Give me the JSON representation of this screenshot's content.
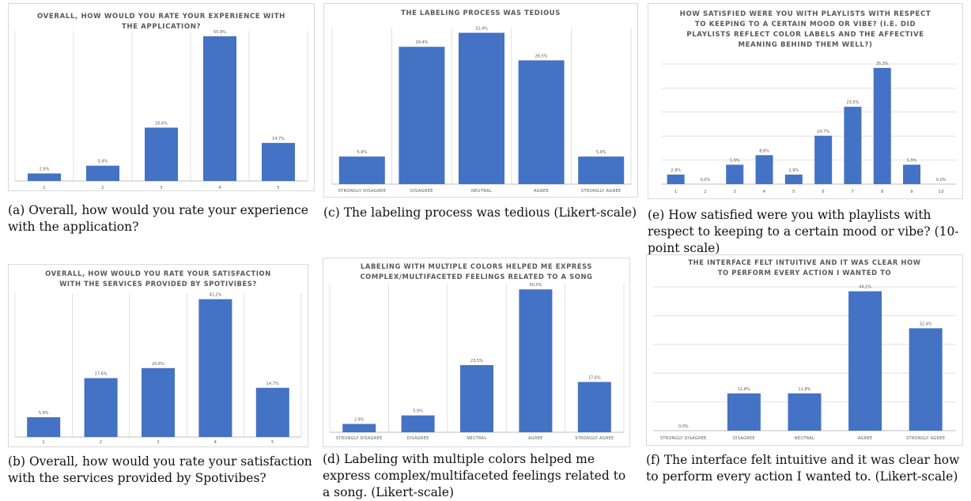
{
  "colors": {
    "bar": "#4472C4",
    "grid": "#d9d9d9",
    "text": "#595959",
    "border": "#d9d9d9"
  },
  "captions": {
    "a": "(a) Overall, how would you rate your experience with the application?",
    "b": "(b) Overall, how would you rate your satisfaction with the services provided by Spotivibes?",
    "c": "(c) The labeling process was tedious (Likert-scale)",
    "d": "(d) Labeling with multiple colors helped me express complex/multifaceted feelings related to a song. (Likert-scale)",
    "e": "(e) How satisfied were you with playlists with respect to keeping to a certain mood or vibe? (10-point scale)",
    "f": "(f) The interface felt intuitive and it was clear how to perform every action I wanted to. (Likert-scale)"
  },
  "chart_data": [
    {
      "id": "a",
      "type": "bar",
      "title": [
        "OVERALL, HOW WOULD YOU RATE YOUR EXPERIENCE WITH",
        "THE APPLICATION?"
      ],
      "categories": [
        "1",
        "2",
        "3",
        "4",
        "5"
      ],
      "values": [
        2.9,
        5.9,
        20.6,
        55.9,
        14.7
      ],
      "labels": [
        "2,9%",
        "5,9%",
        "20,6%",
        "55,9%",
        "14,7%"
      ],
      "ylim": [
        0,
        58
      ],
      "grid": "vertical"
    },
    {
      "id": "b",
      "type": "bar",
      "title": [
        "OVERALL, HOW WOULD YOU RATE YOUR SATISFACTION",
        "WITH THE SERVICES PROVIDED BY SPOTIVIBES?"
      ],
      "categories": [
        "1",
        "2",
        "3",
        "4",
        "5"
      ],
      "values": [
        5.9,
        17.6,
        20.6,
        41.2,
        14.7
      ],
      "labels": [
        "5,9%",
        "17,6%",
        "20,6%",
        "41,2%",
        "14,7%"
      ],
      "ylim": [
        0,
        43
      ],
      "grid": "vertical"
    },
    {
      "id": "c",
      "type": "bar",
      "title": [
        "THE LABELING PROCESS WAS TEDIOUS"
      ],
      "categories": [
        "STRONGLY DISAGREE",
        "DISAGREE",
        "NEUTRAL",
        "AGREE",
        "STRONGLY AGREE"
      ],
      "values": [
        5.9,
        29.4,
        32.4,
        26.5,
        5.9
      ],
      "labels": [
        "5,9%",
        "29,4%",
        "32,4%",
        "26,5%",
        "5,9%"
      ],
      "ylim": [
        0,
        33.5
      ],
      "grid": "vertical"
    },
    {
      "id": "d",
      "type": "bar",
      "title": [
        "LABELING WITH MULTIPLE COLORS HELPED ME EXPRESS",
        "COMPLEX/MULTIFACETED FEELINGS RELATED TO A SONG"
      ],
      "categories": [
        "STRONGLY DISAGREE",
        "DISAGREE",
        "NEUTRAL",
        "AGREE",
        "STRONGLY AGREE"
      ],
      "values": [
        2.9,
        5.9,
        23.5,
        50.0,
        17.6
      ],
      "labels": [
        "2,9%",
        "5,9%",
        "23,5%",
        "50,0%",
        "17,6%"
      ],
      "ylim": [
        0,
        52
      ],
      "grid": "vertical"
    },
    {
      "id": "e",
      "type": "bar",
      "title": [
        "HOW SATISFIED WERE YOU WITH PLAYLISTS WITH RESPECT",
        "TO KEEPING TO A CERTAIN MOOD OR VIBE? (I.E. DID",
        "PLAYLISTS REFLECT COLOR LABELS AND THE AFFECTIVE",
        "MEANING BEHIND THEM WELL?)"
      ],
      "categories": [
        "1",
        "2",
        "3",
        "4",
        "5",
        "6",
        "7",
        "8",
        "9",
        "10"
      ],
      "values": [
        2.9,
        0.0,
        5.9,
        8.8,
        2.9,
        14.7,
        23.5,
        35.3,
        5.9,
        0.0
      ],
      "labels": [
        "2,9%",
        "0,0%",
        "5,9%",
        "8,8%",
        "2,9%",
        "14,7%",
        "23,5%",
        "35,3%",
        "5,9%",
        "0,0%"
      ],
      "ylim": [
        0,
        36.5
      ],
      "grid": "horizontal"
    },
    {
      "id": "f",
      "type": "bar",
      "title": [
        "THE INTERFACE FELT INTUITIVE AND IT WAS CLEAR HOW",
        "TO PERFORM EVERY ACTION I WANTED TO"
      ],
      "categories": [
        "STRONGLY DISAGREE",
        "DISAGREE",
        "NEUTRAL",
        "AGREE",
        "STRONGLY AGREE"
      ],
      "values": [
        0.0,
        11.8,
        11.8,
        44.1,
        32.4
      ],
      "labels": [
        "0,0%",
        "11,8%",
        "11,8%",
        "44,1%",
        "32,4%"
      ],
      "ylim": [
        0,
        45.5
      ],
      "grid": "horizontal"
    }
  ]
}
